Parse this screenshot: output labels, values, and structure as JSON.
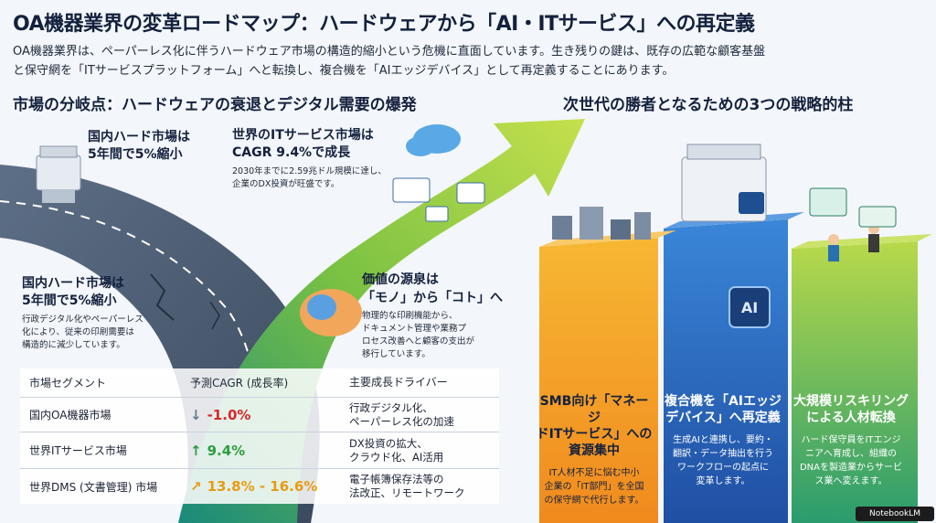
{
  "header": {
    "title": "OA機器業界の変革ロードマップ：ハードウェアから「AI・ITサービス」への再定義",
    "intro": [
      "OA機器業界は、ペーパーレス化に伴うハードウェア市場の構造的縮小という危機に直面しています。生き残りの鍵は、既存の広範な顧客基盤",
      "と保守網を「ITサービスプラットフォーム」へと転換し、複合機を「AIエッジデバイス」として再定義することにあります。"
    ]
  },
  "left_section": {
    "heading": "市場の分岐点：ハードウェアの衰退とデジタル需要の爆発",
    "callouts": {
      "domestic_top": {
        "title": [
          "国内ハード市場は",
          "5年間で5%縮小"
        ]
      },
      "global_it": {
        "title": [
          "世界のITサービス市場は",
          "CAGR 9.4%で成長"
        ],
        "body": [
          "2030年までに2.59兆ドル規模に達し、",
          "企業のDX投資が旺盛です。"
        ]
      },
      "domestic_bottom": {
        "title": [
          "国内ハード市場は",
          "5年間で5%縮小"
        ],
        "body": [
          "行政デジタル化やペーパーレス",
          "化により、従来の印刷需要は",
          "構造的に減少しています。"
        ]
      },
      "value_source": {
        "title": [
          "価値の源泉は",
          "「モノ」から「コト」へ"
        ],
        "body": [
          "物理的な印刷機能から、",
          "ドキュメント管理や業務プ",
          "ロセス改善へと顧客の支出が",
          "移行しています。"
        ]
      }
    },
    "table": {
      "headers": [
        "市場セグメント",
        "予測CAGR (成長率)",
        "主要成長ドライバー"
      ],
      "rows": [
        {
          "segment": "国内OA機器市場",
          "cagr": "-1.0%",
          "arrow": "↓",
          "color": "#d62828",
          "drivers": [
            "行政デジタル化、",
            "ペーパーレス化の加速"
          ]
        },
        {
          "segment": "世界ITサービス市場",
          "cagr": "9.4%",
          "arrow": "↑",
          "color": "#2e9e3f",
          "drivers": [
            "DX投資の拡大、",
            "クラウド化、AI活用"
          ]
        },
        {
          "segment": "世界DMS (文書管理) 市場",
          "cagr": "13.8% - 16.6%",
          "arrow": "↗",
          "color": "#e89b12",
          "drivers": [
            "電子帳簿保存法等の",
            "法改正、リモートワーク"
          ]
        }
      ]
    }
  },
  "right_section": {
    "heading": "次世代の勝者となるための3つの戦略的柱",
    "ai_chip_label": "AI",
    "pillars": [
      {
        "title": [
          "SMB向け「マネージ",
          "ドITサービス」への",
          "資源集中"
        ],
        "body": [
          "IT人材不足に悩む中小",
          "企業の「IT部門」を全国",
          "の保守網で代行します。"
        ],
        "color": "#f4a52a"
      },
      {
        "title": [
          "複合機を「AIエッジ",
          "デバイス」へ再定義"
        ],
        "body": [
          "生成AIと連携し、要約・",
          "翻訳・データ抽出を行う",
          "ワークフローの起点に",
          "変革します。"
        ],
        "color": "#2f6fc9"
      },
      {
        "title": [
          "大規模リスキリング",
          "による人材転換"
        ],
        "body": [
          "ハード保守員をITエンジ",
          "ニアへ育成し、組織の",
          "DNAを製造業からサービ",
          "ス業へ変えます。"
        ],
        "color": "#2ea37a"
      }
    ]
  },
  "footer": {
    "badge": "NotebookLM"
  }
}
